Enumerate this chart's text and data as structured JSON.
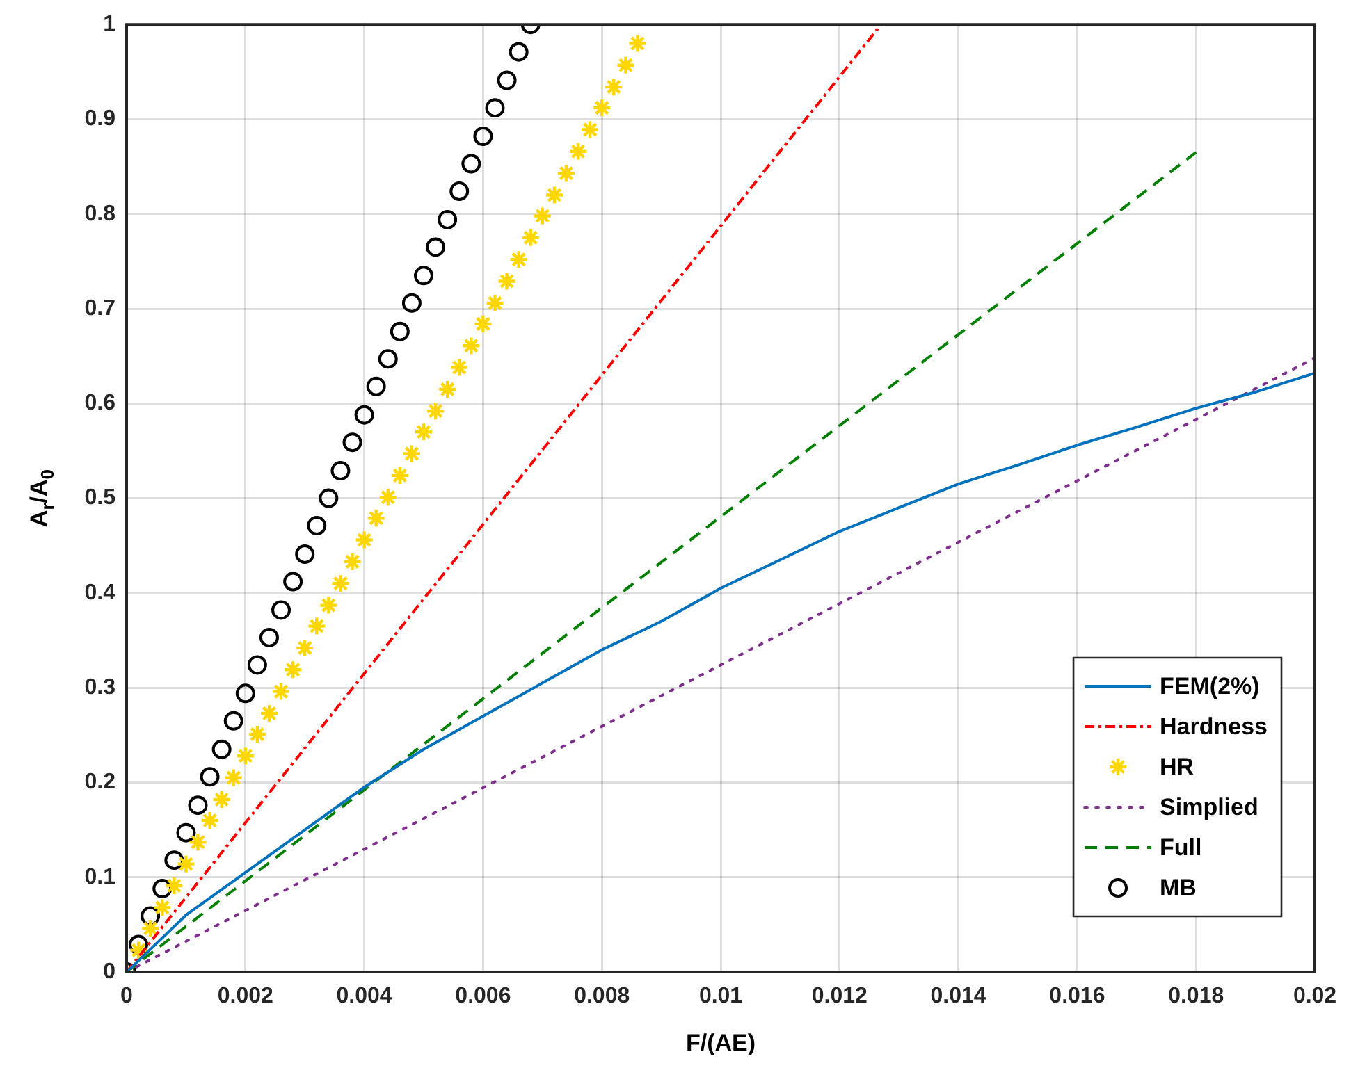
{
  "chart_data": {
    "type": "line",
    "xlabel": "F/(AE)",
    "ylabel": "A$_{r}$/A$_{0}$",
    "xlim": [
      0,
      0.02
    ],
    "xticks": [
      0,
      0.002,
      0.004,
      0.006,
      0.008,
      0.01,
      0.012,
      0.014,
      0.016,
      0.018,
      0.02
    ],
    "ylim": [
      0,
      1
    ],
    "yticks": [
      0,
      0.1,
      0.2,
      0.3,
      0.4,
      0.5,
      0.6,
      0.7,
      0.8,
      0.9,
      1
    ],
    "grid": true,
    "legend": "bottom right",
    "series": [
      {
        "name": "FEM(2%)",
        "color": "#0072bd",
        "line_style": "solid",
        "marker": "none",
        "x": [
          0,
          0.001,
          0.002,
          0.003,
          0.004,
          0.005,
          0.006,
          0.007,
          0.008,
          0.009,
          0.01,
          0.011,
          0.012,
          0.013,
          0.014,
          0.015,
          0.016,
          0.017,
          0.018,
          0.019,
          0.02
        ],
        "values": [
          0,
          0.06,
          0.105,
          0.15,
          0.195,
          0.235,
          0.27,
          0.305,
          0.34,
          0.37,
          0.405,
          0.435,
          0.465,
          0.49,
          0.515,
          0.535,
          0.556,
          0.575,
          0.595,
          0.612,
          0.632
        ]
      },
      {
        "name": "Hardness",
        "color": "#ff0000",
        "line_style": "dashdot",
        "marker": "none",
        "x": [
          0,
          0.0127
        ],
        "values": [
          0,
          1
        ]
      },
      {
        "name": "HR",
        "color": "#ffd700",
        "type": "scatter",
        "marker": "cross",
        "x": [
          0,
          0.0002,
          0.0004,
          0.0006,
          0.0008,
          0.001,
          0.0012,
          0.0014,
          0.0016,
          0.0018,
          0.002,
          0.0022,
          0.0024,
          0.0026,
          0.0028,
          0.003,
          0.0032,
          0.0034,
          0.0036,
          0.0038,
          0.004,
          0.0042,
          0.0044,
          0.0046,
          0.0048,
          0.005,
          0.0052,
          0.0054,
          0.0056,
          0.0058,
          0.006,
          0.0062,
          0.0064,
          0.0066,
          0.0068,
          0.007,
          0.0072,
          0.0074,
          0.0076,
          0.0078,
          0.008,
          0.0082,
          0.0084,
          0.0086
        ],
        "values": [
          0,
          0.023,
          0.046,
          0.068,
          0.091,
          0.114,
          0.137,
          0.16,
          0.182,
          0.205,
          0.228,
          0.251,
          0.273,
          0.296,
          0.319,
          0.342,
          0.365,
          0.387,
          0.41,
          0.433,
          0.456,
          0.479,
          0.501,
          0.524,
          0.547,
          0.57,
          0.592,
          0.615,
          0.638,
          0.661,
          0.684,
          0.706,
          0.729,
          0.752,
          0.775,
          0.798,
          0.82,
          0.843,
          0.866,
          0.889,
          0.912,
          0.934,
          0.957,
          0.98
        ]
      },
      {
        "name": "Simplied",
        "color": "#7e2f8e",
        "line_style": "dotted",
        "marker": "none",
        "x": [
          0,
          0.02
        ],
        "values": [
          0,
          0.648
        ]
      },
      {
        "name": "Full",
        "color": "#008000",
        "line_style": "dashed",
        "marker": "none",
        "x": [
          0,
          0.018
        ],
        "values": [
          0,
          0.865
        ]
      },
      {
        "name": "MB",
        "color": "#000000",
        "type": "scatter",
        "marker": "circle",
        "x": [
          0,
          0.0002,
          0.0004,
          0.0006,
          0.0008,
          0.001,
          0.0012,
          0.0014,
          0.0016,
          0.0018,
          0.002,
          0.0022,
          0.0024,
          0.0026,
          0.0028,
          0.003,
          0.0032,
          0.0034,
          0.0036,
          0.0038,
          0.004,
          0.0042,
          0.0044,
          0.0046,
          0.0048,
          0.005,
          0.0052,
          0.0054,
          0.0056,
          0.0058,
          0.006,
          0.0062,
          0.0064,
          0.0066,
          0.0068
        ],
        "values": [
          0,
          0.029,
          0.059,
          0.088,
          0.118,
          0.147,
          0.176,
          0.206,
          0.235,
          0.265,
          0.294,
          0.324,
          0.353,
          0.382,
          0.412,
          0.441,
          0.471,
          0.5,
          0.529,
          0.559,
          0.588,
          0.618,
          0.647,
          0.676,
          0.706,
          0.735,
          0.765,
          0.794,
          0.824,
          0.853,
          0.882,
          0.912,
          0.941,
          0.971,
          1
        ]
      }
    ]
  }
}
